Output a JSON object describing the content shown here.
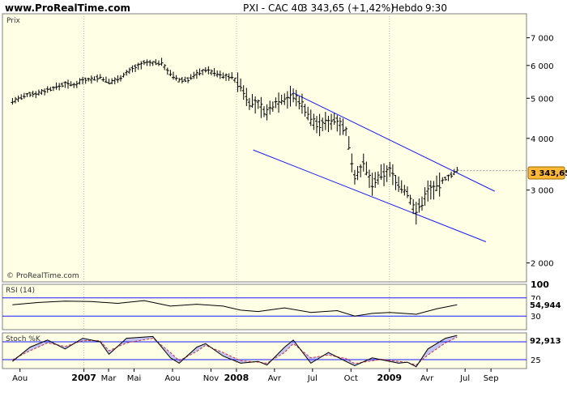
{
  "header": {
    "site": "www.ProRealTime.com",
    "title": "PXI - CAC 40",
    "quote": "3 343,65 (+1,42%)",
    "period": "Hebdo",
    "time": "9:30"
  },
  "colors": {
    "panel_bg": "#ffffe6",
    "frame": "#808080",
    "channel": "#1a1aff",
    "badge": "#ffb833",
    "rsi_line": "#000000",
    "stoch_k": "#000000",
    "stoch_d": "#cc3333",
    "stoch_fill": "#7a7aff"
  },
  "chart_data": [
    {
      "type": "ohlc",
      "label": "Prix",
      "watermark": "© ProRealTime.com",
      "y_scale": "log",
      "ylim": [
        1800,
        8000
      ],
      "y_ticks": [
        {
          "v": 7000,
          "t": "7 000"
        },
        {
          "v": 6000,
          "t": "6 000"
        },
        {
          "v": 5000,
          "t": "5 000"
        },
        {
          "v": 4000,
          "t": "4 000"
        },
        {
          "v": 3000,
          "t": "3 000"
        },
        {
          "v": 2000,
          "t": "2 000"
        }
      ],
      "last_value": "3 343,65",
      "last": 3343.65,
      "x_ticks": [
        {
          "d": "2006-08-01",
          "t": "Aou",
          "bold": false
        },
        {
          "d": "2007-01-01",
          "t": "2007",
          "bold": true
        },
        {
          "d": "2007-03-01",
          "t": "Mar",
          "bold": false
        },
        {
          "d": "2007-05-01",
          "t": "Mai",
          "bold": false
        },
        {
          "d": "2007-08-01",
          "t": "Aou",
          "bold": false
        },
        {
          "d": "2007-11-01",
          "t": "Nov",
          "bold": false
        },
        {
          "d": "2008-01-01",
          "t": "2008",
          "bold": true
        },
        {
          "d": "2008-04-01",
          "t": "Avr",
          "bold": false
        },
        {
          "d": "2008-07-01",
          "t": "Jul",
          "bold": false
        },
        {
          "d": "2008-10-01",
          "t": "Oct",
          "bold": false
        },
        {
          "d": "2009-01-01",
          "t": "2009",
          "bold": true
        },
        {
          "d": "2009-04-01",
          "t": "Avr",
          "bold": false
        },
        {
          "d": "2009-07-01",
          "t": "Jul",
          "bold": false
        },
        {
          "d": "2009-09-01",
          "t": "Sep",
          "bold": false
        }
      ],
      "series": [
        {
          "name": "CAC 40",
          "points": [
            [
              "2006-07-14",
              4920
            ],
            [
              "2006-08-04",
              5010
            ],
            [
              "2006-08-25",
              5120
            ],
            [
              "2006-09-15",
              5150
            ],
            [
              "2006-10-06",
              5240
            ],
            [
              "2006-10-27",
              5320
            ],
            [
              "2006-11-17",
              5420
            ],
            [
              "2006-12-08",
              5380
            ],
            [
              "2006-12-29",
              5540
            ],
            [
              "2007-01-19",
              5560
            ],
            [
              "2007-02-09",
              5620
            ],
            [
              "2007-03-02",
              5460
            ],
            [
              "2007-03-23",
              5560
            ],
            [
              "2007-04-13",
              5760
            ],
            [
              "2007-05-04",
              5940
            ],
            [
              "2007-05-25",
              6080
            ],
            [
              "2007-06-15",
              6080
            ],
            [
              "2007-07-06",
              6100
            ],
            [
              "2007-07-27",
              5720
            ],
            [
              "2007-08-17",
              5520
            ],
            [
              "2007-09-07",
              5560
            ],
            [
              "2007-09-28",
              5720
            ],
            [
              "2007-10-19",
              5860
            ],
            [
              "2007-11-09",
              5760
            ],
            [
              "2007-11-30",
              5660
            ],
            [
              "2007-12-21",
              5640
            ],
            [
              "2008-01-11",
              5350
            ],
            [
              "2008-02-01",
              4900
            ],
            [
              "2008-02-22",
              4820
            ],
            [
              "2008-03-14",
              4600
            ],
            [
              "2008-04-04",
              4900
            ],
            [
              "2008-04-25",
              5000
            ],
            [
              "2008-05-16",
              5060
            ],
            [
              "2008-06-06",
              4850
            ],
            [
              "2008-06-27",
              4450
            ],
            [
              "2008-07-18",
              4300
            ],
            [
              "2008-08-08",
              4400
            ],
            [
              "2008-08-29",
              4450
            ],
            [
              "2008-09-19",
              4150
            ],
            [
              "2008-10-10",
              3250
            ],
            [
              "2008-10-31",
              3450
            ],
            [
              "2008-11-21",
              3100
            ],
            [
              "2008-12-12",
              3250
            ],
            [
              "2009-01-02",
              3350
            ],
            [
              "2009-01-23",
              3100
            ],
            [
              "2009-02-13",
              2950
            ],
            [
              "2009-03-06",
              2650
            ],
            [
              "2009-03-20",
              2800
            ],
            [
              "2009-04-03",
              3000
            ],
            [
              "2009-04-24",
              3050
            ],
            [
              "2009-05-15",
              3200
            ],
            [
              "2009-06-05",
              3300
            ],
            [
              "2009-06-12",
              3343.65
            ]
          ]
        }
      ],
      "channel": [
        {
          "name": "upper",
          "from": [
            "2008-05-16",
            5150
          ],
          "to": [
            "2009-09-10",
            2980
          ]
        },
        {
          "name": "lower",
          "from": [
            "2008-02-10",
            3750
          ],
          "to": [
            "2009-08-20",
            2250
          ]
        }
      ]
    },
    {
      "type": "line",
      "label": "RSI (14)",
      "ylim": [
        0,
        100
      ],
      "y_ticks": [
        {
          "v": 100,
          "t": "100"
        },
        {
          "v": 70,
          "t": "70"
        },
        {
          "v": 30,
          "t": "30"
        }
      ],
      "ref_lines": [
        70,
        30
      ],
      "last_value": "54,944",
      "series": [
        {
          "name": "RSI",
          "points": [
            [
              "2006-07-14",
              55
            ],
            [
              "2006-09-15",
              60
            ],
            [
              "2006-11-17",
              63
            ],
            [
              "2007-01-19",
              62
            ],
            [
              "2007-03-23",
              58
            ],
            [
              "2007-05-25",
              64
            ],
            [
              "2007-07-27",
              52
            ],
            [
              "2007-09-28",
              56
            ],
            [
              "2007-11-30",
              52
            ],
            [
              "2008-01-11",
              43
            ],
            [
              "2008-02-22",
              40
            ],
            [
              "2008-04-25",
              48
            ],
            [
              "2008-06-27",
              38
            ],
            [
              "2008-08-29",
              42
            ],
            [
              "2008-10-10",
              30
            ],
            [
              "2008-11-21",
              36
            ],
            [
              "2009-01-02",
              38
            ],
            [
              "2009-03-06",
              34
            ],
            [
              "2009-04-24",
              46
            ],
            [
              "2009-06-12",
              54.944
            ]
          ]
        }
      ]
    },
    {
      "type": "line",
      "label": "Stoch %K",
      "ylim": [
        0,
        100
      ],
      "y_ticks": [
        {
          "v": 25,
          "t": "25"
        }
      ],
      "ref_lines": [
        75,
        25
      ],
      "last_value": "92,913",
      "series": [
        {
          "name": "%K",
          "points": [
            [
              "2006-07-14",
              20
            ],
            [
              "2006-08-25",
              60
            ],
            [
              "2006-10-06",
              80
            ],
            [
              "2006-11-17",
              55
            ],
            [
              "2006-12-29",
              85
            ],
            [
              "2007-02-09",
              75
            ],
            [
              "2007-03-02",
              40
            ],
            [
              "2007-04-13",
              85
            ],
            [
              "2007-06-15",
              90
            ],
            [
              "2007-07-27",
              30
            ],
            [
              "2007-08-17",
              15
            ],
            [
              "2007-09-28",
              60
            ],
            [
              "2007-10-19",
              70
            ],
            [
              "2007-11-30",
              35
            ],
            [
              "2008-01-11",
              15
            ],
            [
              "2008-02-22",
              20
            ],
            [
              "2008-03-14",
              10
            ],
            [
              "2008-04-25",
              60
            ],
            [
              "2008-05-16",
              80
            ],
            [
              "2008-06-27",
              15
            ],
            [
              "2008-08-08",
              45
            ],
            [
              "2008-09-19",
              20
            ],
            [
              "2008-10-10",
              8
            ],
            [
              "2008-11-21",
              30
            ],
            [
              "2008-12-12",
              25
            ],
            [
              "2009-01-23",
              15
            ],
            [
              "2009-02-13",
              18
            ],
            [
              "2009-03-06",
              5
            ],
            [
              "2009-04-03",
              55
            ],
            [
              "2009-05-15",
              85
            ],
            [
              "2009-06-12",
              92.913
            ]
          ]
        },
        {
          "name": "%D",
          "points": [
            [
              "2006-07-14",
              25
            ],
            [
              "2006-08-25",
              50
            ],
            [
              "2006-10-06",
              72
            ],
            [
              "2006-11-17",
              62
            ],
            [
              "2006-12-29",
              78
            ],
            [
              "2007-02-09",
              78
            ],
            [
              "2007-03-02",
              50
            ],
            [
              "2007-04-13",
              72
            ],
            [
              "2007-06-15",
              85
            ],
            [
              "2007-07-27",
              45
            ],
            [
              "2007-08-17",
              22
            ],
            [
              "2007-09-28",
              48
            ],
            [
              "2007-10-19",
              65
            ],
            [
              "2007-11-30",
              45
            ],
            [
              "2008-01-11",
              22
            ],
            [
              "2008-02-22",
              18
            ],
            [
              "2008-03-14",
              15
            ],
            [
              "2008-04-25",
              45
            ],
            [
              "2008-05-16",
              70
            ],
            [
              "2008-06-27",
              30
            ],
            [
              "2008-08-08",
              38
            ],
            [
              "2008-09-19",
              28
            ],
            [
              "2008-10-10",
              14
            ],
            [
              "2008-11-21",
              22
            ],
            [
              "2008-12-12",
              26
            ],
            [
              "2009-01-23",
              20
            ],
            [
              "2009-02-13",
              17
            ],
            [
              "2009-03-06",
              10
            ],
            [
              "2009-04-03",
              38
            ],
            [
              "2009-05-15",
              72
            ],
            [
              "2009-06-12",
              88
            ]
          ]
        }
      ]
    }
  ]
}
